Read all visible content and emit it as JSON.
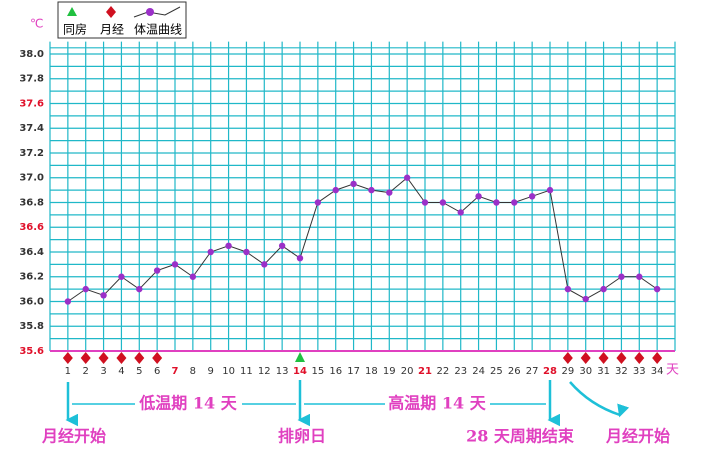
{
  "chart_data": {
    "type": "line",
    "unit_label": "℃",
    "x_unit_label": "天",
    "legend": {
      "intercourse": "同房",
      "period": "月经",
      "temperature": "体温曲线"
    },
    "categories": [
      "1",
      "2",
      "3",
      "4",
      "5",
      "6",
      "7",
      "8",
      "9",
      "10",
      "11",
      "12",
      "13",
      "14",
      "15",
      "16",
      "17",
      "18",
      "19",
      "20",
      "21",
      "22",
      "23",
      "24",
      "25",
      "26",
      "27",
      "28",
      "29",
      "30",
      "31",
      "32",
      "33",
      "34"
    ],
    "highlight_categories": [
      6,
      13,
      20,
      27
    ],
    "highlight_color": "#e0102a",
    "xlim": [
      0,
      35
    ],
    "series": [
      {
        "name": "体温曲线",
        "color": "#9b30c8",
        "values": [
          36.0,
          36.1,
          36.05,
          36.2,
          36.1,
          36.25,
          36.3,
          36.2,
          36.4,
          36.45,
          36.4,
          36.3,
          36.45,
          36.35,
          36.8,
          36.9,
          36.95,
          36.9,
          36.88,
          37.0,
          36.8,
          36.8,
          36.72,
          36.85,
          36.8,
          36.8,
          36.85,
          36.9,
          36.1,
          36.02,
          36.1,
          36.2,
          36.2,
          36.1
        ]
      }
    ],
    "ylim": [
      35.6,
      38.1
    ],
    "yticks": [
      {
        "value": 35.6,
        "label": "35.6",
        "color": "#e0102a"
      },
      {
        "value": 35.8,
        "label": "35.8"
      },
      {
        "value": 36.0,
        "label": "36.0"
      },
      {
        "value": 36.2,
        "label": "36.2"
      },
      {
        "value": 36.4,
        "label": "36.4"
      },
      {
        "value": 36.6,
        "label": "36.6",
        "color": "#e0102a"
      },
      {
        "value": 36.8,
        "label": "36.8"
      },
      {
        "value": 37.0,
        "label": "37.0"
      },
      {
        "value": 37.2,
        "label": "37.2"
      },
      {
        "value": 37.4,
        "label": "37.4"
      },
      {
        "value": 37.6,
        "label": "37.6",
        "color": "#e0102a"
      },
      {
        "value": 37.8,
        "label": "37.8"
      },
      {
        "value": 38.0,
        "label": "38.0"
      }
    ],
    "period_days": [
      1,
      2,
      3,
      4,
      5,
      6,
      29,
      30,
      31,
      32,
      33,
      34
    ],
    "intercourse_days": [
      14
    ],
    "grid": true,
    "annotations": {
      "low_phase": "低温期 14 天",
      "high_phase": "高温期 14 天",
      "period_start": "月经开始",
      "ovulation": "排卵日",
      "cycle_end": "28 天周期结束",
      "period_start_next": "月经开始"
    }
  }
}
